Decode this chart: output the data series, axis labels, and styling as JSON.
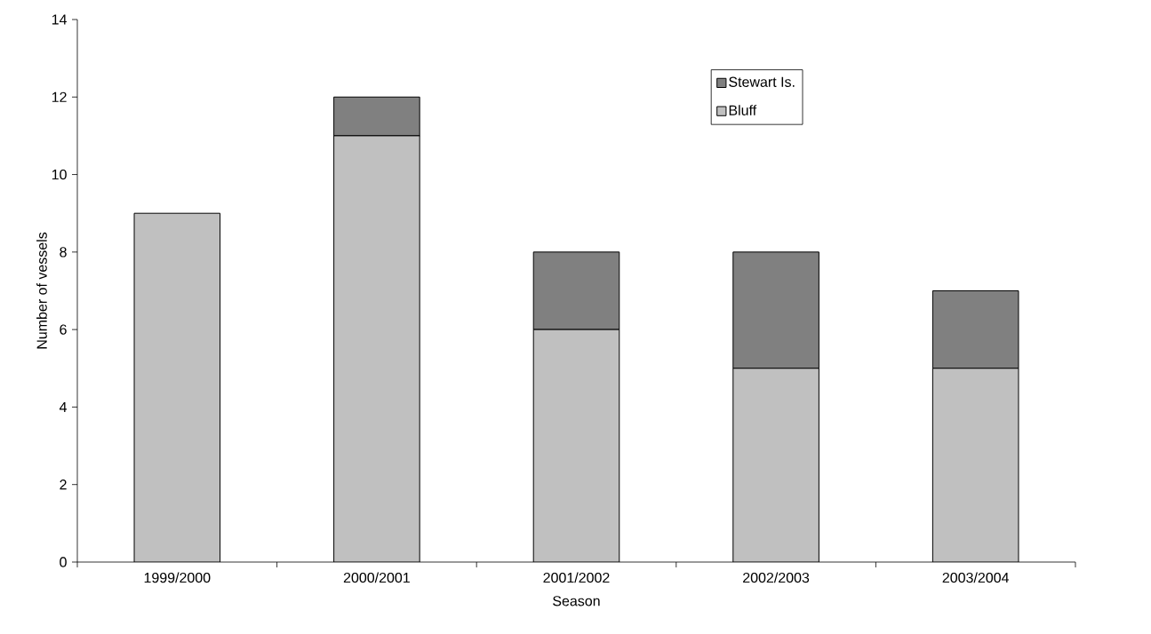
{
  "chart_data": {
    "type": "bar",
    "stacked": true,
    "xlabel": "Season",
    "ylabel": "Number of vessels",
    "categories": [
      "1999/2000",
      "2000/2001",
      "2001/2002",
      "2002/2003",
      "2003/2004"
    ],
    "series": [
      {
        "name": "Bluff",
        "color": "#c0c0c0",
        "values": [
          9,
          11,
          6,
          5,
          5
        ]
      },
      {
        "name": "Stewart Is.",
        "color": "#808080",
        "values": [
          null,
          1,
          2,
          3,
          2
        ]
      }
    ],
    "ylim": [
      0,
      14
    ],
    "yticks": [
      0,
      2,
      4,
      6,
      8,
      10,
      12,
      14
    ],
    "grid": false,
    "legend": "top right"
  }
}
